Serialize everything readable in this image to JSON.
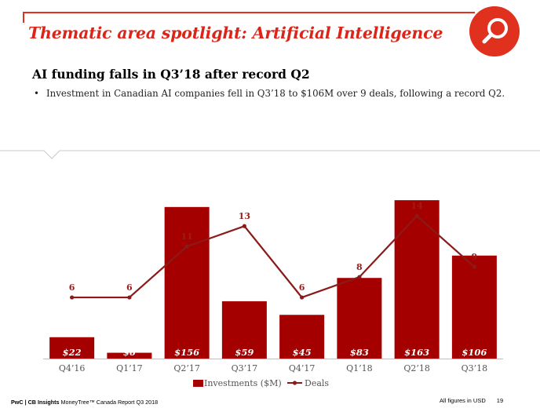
{
  "header": {
    "title": "Thematic area spotlight: Artificial Intelligence",
    "icon": "search-icon"
  },
  "section": {
    "subtitle": "AI funding falls in Q3’18 after record Q2",
    "bullet": "Investment in Canadian AI companies fell in Q3’18 to $106M over 9 deals, following a record Q2."
  },
  "colors": {
    "accent": "#e0301e",
    "bar": "#a50000",
    "line": "#8b1a1a",
    "label": "#9c1c1c"
  },
  "chart_data": {
    "type": "bar",
    "title": "",
    "categories": [
      "Q4’16",
      "Q1’17",
      "Q2’17",
      "Q3’17",
      "Q4’17",
      "Q1’18",
      "Q2’18",
      "Q3’18"
    ],
    "series": [
      {
        "name": "Investments ($M)",
        "type": "bar",
        "values": [
          22,
          6,
          156,
          59,
          45,
          83,
          163,
          106
        ],
        "labels": [
          "$22",
          "$6",
          "$156",
          "$59",
          "$45",
          "$83",
          "$163",
          "$106"
        ]
      },
      {
        "name": "Deals",
        "type": "line",
        "values": [
          6,
          6,
          11,
          13,
          6,
          8,
          14,
          9
        ],
        "labels": [
          "6",
          "6",
          "11",
          "13",
          "6",
          "8",
          "14",
          "9"
        ]
      }
    ],
    "ylim": [
      0,
      172
    ],
    "ylim_secondary": [
      0,
      16.4
    ],
    "xlabel": "",
    "ylabel": "",
    "legend_position": "bottom-center"
  },
  "footer": {
    "brand": "PwC | CB Insights",
    "report": "MoneyTree™ Canada Report Q3 2018",
    "note": "All figures in USD",
    "page": "19"
  }
}
